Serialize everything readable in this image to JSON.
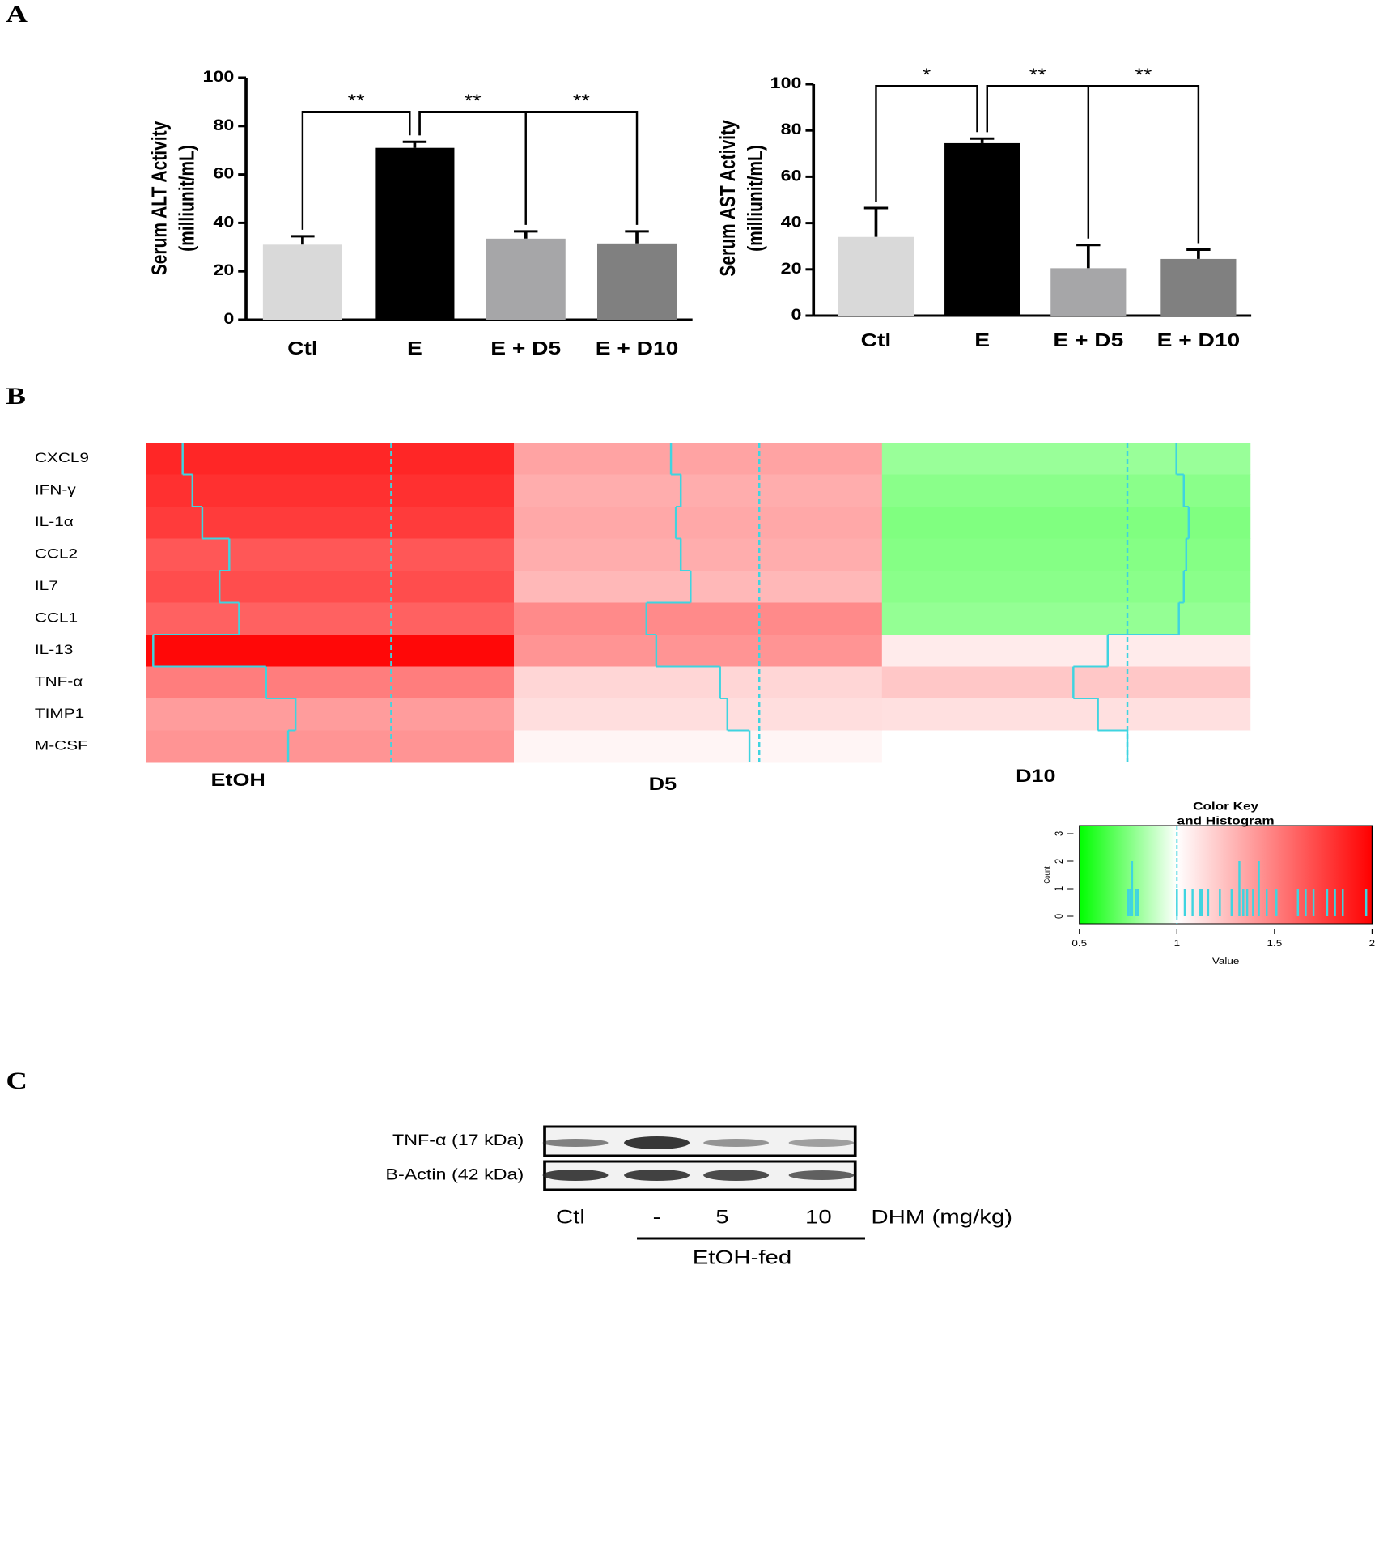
{
  "panels": [
    "A",
    "B",
    "C"
  ],
  "chart_data": [
    {
      "type": "bar",
      "ylabel": [
        "Serum ALT Activity",
        "(milliunit/mL)"
      ],
      "categories": [
        "Ctl",
        "E",
        "E + D5",
        "E + D10"
      ],
      "values": [
        31,
        71,
        33.5,
        31.5
      ],
      "errors": [
        3.5,
        2.5,
        3,
        5
      ],
      "colors": [
        "#d9d9d9",
        "#000000",
        "#a6a6a8",
        "#808080"
      ],
      "ylim": [
        0,
        100
      ],
      "yticks": [
        0,
        20,
        40,
        60,
        80,
        100
      ],
      "annotations": [
        {
          "text": "**",
          "from": 0,
          "to": 1
        },
        {
          "text": "**",
          "from": 1,
          "to": 2
        },
        {
          "text": "**",
          "from": 1,
          "to": 3
        }
      ]
    },
    {
      "type": "bar",
      "ylabel": [
        "Serum AST Activity",
        "(milliunit/mL)"
      ],
      "categories": [
        "Ctl",
        "E",
        "E + D5",
        "E + D10"
      ],
      "values": [
        34,
        74.5,
        20.5,
        24.5
      ],
      "errors": [
        12.5,
        2,
        10,
        4
      ],
      "colors": [
        "#d9d9d9",
        "#000000",
        "#a6a6a8",
        "#808080"
      ],
      "ylim": [
        0,
        100
      ],
      "yticks": [
        0,
        20,
        40,
        60,
        80,
        100
      ],
      "annotations": [
        {
          "text": "*",
          "from": 0,
          "to": 1
        },
        {
          "text": "**",
          "from": 1,
          "to": 2
        },
        {
          "text": "**",
          "from": 1,
          "to": 3
        }
      ]
    },
    {
      "type": "heatmap",
      "rows": [
        "CXCL9",
        "IFN-γ",
        "IL-1α",
        "CCL2",
        "IL7",
        "CCL1",
        "IL-13",
        "TNF-α",
        "TIMP1",
        "M-CSF"
      ],
      "series": [
        {
          "name": "EtOH",
          "values": [
            1.85,
            1.81,
            1.77,
            1.66,
            1.7,
            1.62,
            1.97,
            1.51,
            1.39,
            1.42
          ]
        },
        {
          "name": "D5",
          "values": [
            1.36,
            1.32,
            1.34,
            1.32,
            1.28,
            1.46,
            1.42,
            1.16,
            1.13,
            1.04
          ]
        },
        {
          "name": "D10",
          "values": [
            0.8,
            0.77,
            0.75,
            0.76,
            0.77,
            0.79,
            1.08,
            1.22,
            1.12,
            1.0
          ]
        }
      ],
      "color_scale": {
        "values": [
          0.5,
          1,
          2
        ],
        "colors": [
          "#00ff00",
          "#ffffff",
          "#ff0000"
        ]
      },
      "vline": 1,
      "trace_color": "#3fd4e0"
    },
    {
      "type": "colorkey",
      "title": [
        "Color Key",
        "and Histogram"
      ],
      "xlabel": "Value",
      "ylabel": "Count",
      "xlim": [
        0.5,
        2
      ],
      "xticks": [
        0.5,
        1,
        1.5,
        2
      ],
      "ylim": [
        0,
        3
      ],
      "yticks": [
        0,
        1,
        2,
        3
      ],
      "vline": 1
    }
  ],
  "blot": {
    "rows": [
      "TNF-α (17 kDa)",
      "B-Actin (42 kDa)"
    ],
    "lanes": [
      "Ctl",
      "-",
      "5",
      "10"
    ],
    "treatment": "DHM (mg/kg)",
    "group": "EtOH-fed"
  }
}
